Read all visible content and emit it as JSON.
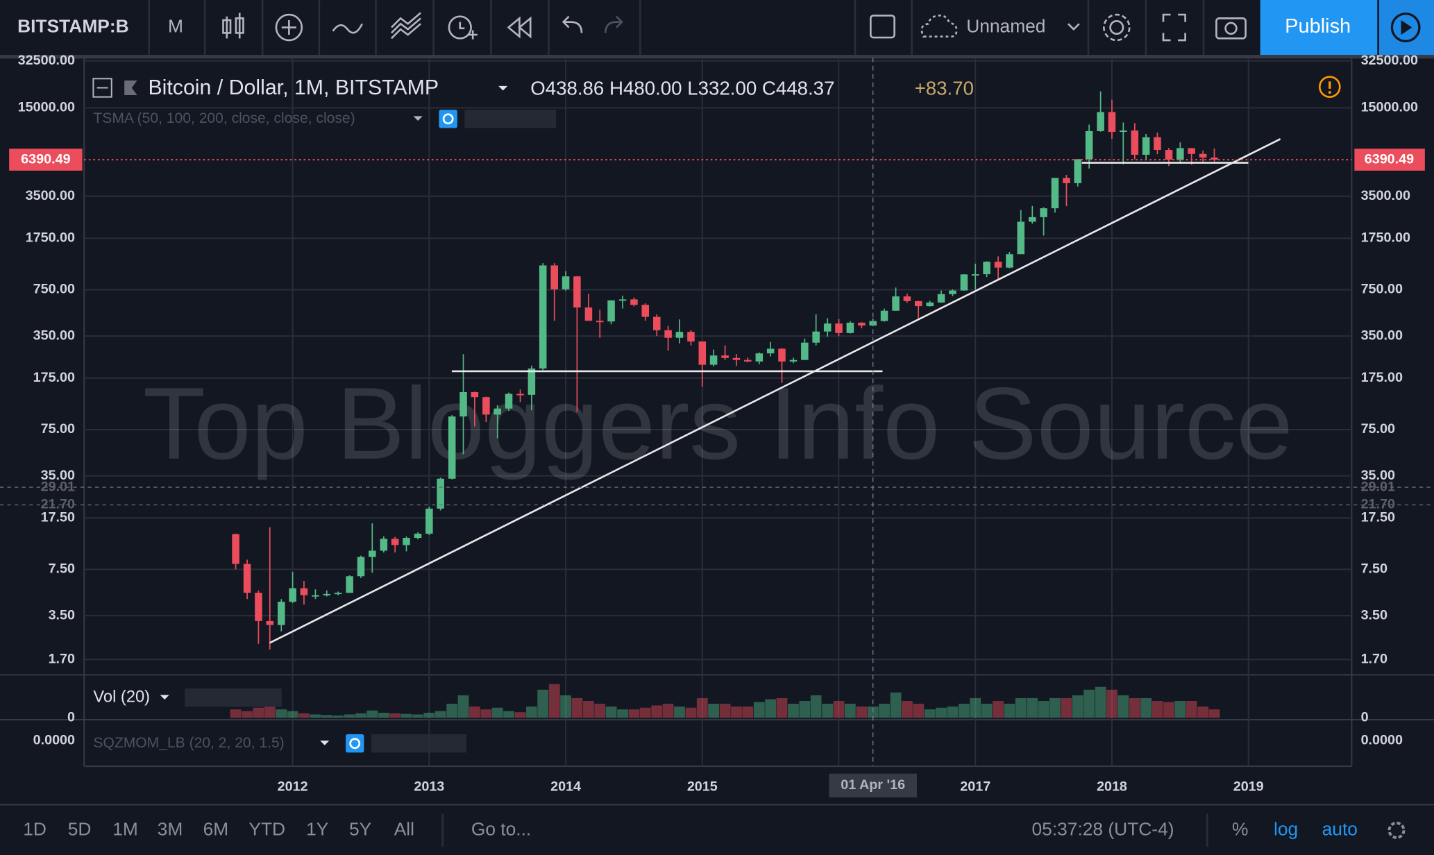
{
  "toolbar": {
    "symbol": "BITSTAMP:B",
    "interval": "M",
    "layout_name": "Unnamed",
    "publish": "Publish"
  },
  "legend": {
    "title": "Bitcoin / Dollar, 1M, BITSTAMP",
    "ohlc": "O438.86 H480.00 L332.00 C448.37",
    "change": "+83.70",
    "study": "TSMA (50, 100, 200, close, close, close)"
  },
  "watermark": "Top Bloggers Info Source",
  "chart_data": {
    "type": "candlestick",
    "x": [
      2011.583,
      2011.667,
      2011.75,
      2011.833,
      2011.917,
      2012,
      2012.083,
      2012.167,
      2012.25,
      2012.333,
      2012.417,
      2012.5,
      2012.583,
      2012.667,
      2012.75,
      2012.833,
      2012.917,
      2013,
      2013.083,
      2013.167,
      2013.25,
      2013.333,
      2013.417,
      2013.5,
      2013.583,
      2013.667,
      2013.75,
      2013.833,
      2013.917,
      2014,
      2014.083,
      2014.167,
      2014.25,
      2014.333,
      2014.417,
      2014.5,
      2014.583,
      2014.667,
      2014.75,
      2014.833,
      2014.917,
      2015,
      2015.083,
      2015.167,
      2015.25,
      2015.333,
      2015.417,
      2015.5,
      2015.583,
      2015.667,
      2015.75,
      2015.833,
      2015.917,
      2016,
      2016.083,
      2016.167,
      2016.25,
      2016.333,
      2016.417,
      2016.5,
      2016.583,
      2016.667,
      2016.75,
      2016.833,
      2016.917,
      2017,
      2017.083,
      2017.167,
      2017.25,
      2017.333,
      2017.417,
      2017.5,
      2017.583,
      2017.667,
      2017.75,
      2017.833,
      2017.917,
      2018,
      2018.083,
      2018.167,
      2018.25,
      2018.333,
      2018.417,
      2018.5,
      2018.583,
      2018.667,
      2018.75
    ],
    "open": [
      13.4,
      8.2,
      5.1,
      3.2,
      3.0,
      4.4,
      5.5,
      4.9,
      4.9,
      5.0,
      5.1,
      6.7,
      9.2,
      10.2,
      12.4,
      11.2,
      12.6,
      13.5,
      20.4,
      33.4,
      93,
      139,
      128,
      96,
      106,
      135,
      133,
      205,
      1120,
      755,
      935,
      560,
      450,
      445,
      630,
      640,
      585,
      480,
      385,
      340,
      375,
      320,
      218,
      254,
      244,
      236,
      230,
      263,
      284,
      230,
      236,
      314,
      377,
      430,
      368,
      436,
      416,
      448,
      531,
      672,
      622,
      573,
      608,
      698,
      741,
      966,
      969,
      1190,
      1080,
      1348,
      2300,
      2480,
      2870,
      4730,
      4340,
      6450,
      10230,
      14000,
      10100,
      10330,
      6930,
      9250,
      7500,
      6390,
      7730,
      7030,
      6620
    ],
    "high": [
      13.5,
      8.8,
      5.3,
      15.0,
      4.6,
      7.2,
      6.2,
      5.4,
      5.3,
      5.2,
      6.8,
      9.4,
      16,
      12.9,
      12.8,
      12.9,
      13.8,
      21.1,
      34,
      95,
      260,
      140,
      129,
      112,
      138,
      145,
      215,
      1163,
      1163,
      1020,
      940,
      700,
      540,
      630,
      680,
      660,
      600,
      500,
      415,
      460,
      385,
      320,
      280,
      300,
      260,
      246,
      267,
      317,
      286,
      245,
      336,
      500,
      470,
      463,
      447,
      440,
      468,
      550,
      778,
      705,
      625,
      625,
      740,
      755,
      970,
      1153,
      1200,
      1300,
      1400,
      2790,
      2980,
      2920,
      4740,
      4975,
      6470,
      11390,
      19666,
      17170,
      11790,
      11680,
      9770,
      9980,
      7770,
      8500,
      7750,
      7410,
      7680
    ],
    "low": [
      7.5,
      4.6,
      2.2,
      2.0,
      2.7,
      4.3,
      4.2,
      4.6,
      4.8,
      4.9,
      5.1,
      6.5,
      7.1,
      9.9,
      9.9,
      10.1,
      12.3,
      13.2,
      19.8,
      33,
      50,
      79,
      85,
      65,
      102,
      118,
      103,
      200,
      450,
      740,
      100,
      450,
      340,
      425,
      550,
      570,
      450,
      350,
      275,
      310,
      300,
      152,
      212,
      236,
      214,
      227,
      220,
      250,
      162,
      224,
      236,
      300,
      346,
      350,
      365,
      397,
      411,
      444,
      531,
      606,
      470,
      569,
      605,
      675,
      740,
      752,
      925,
      890,
      1070,
      1350,
      2230,
      1830,
      2670,
      2970,
      4110,
      5520,
      10130,
      9000,
      5920,
      6430,
      6430,
      7000,
      5750,
      6070,
      5880,
      6100,
      6200
    ],
    "close": [
      8.2,
      5.1,
      3.2,
      3.0,
      4.4,
      5.5,
      4.9,
      4.9,
      5.0,
      5.1,
      6.7,
      9.2,
      10.2,
      12.4,
      11.2,
      12.6,
      13.5,
      20.4,
      33.4,
      93,
      139,
      128,
      96,
      106,
      135,
      133,
      205,
      1120,
      755,
      935,
      560,
      450,
      445,
      630,
      640,
      585,
      480,
      385,
      340,
      375,
      320,
      218,
      254,
      244,
      236,
      230,
      263,
      284,
      230,
      236,
      314,
      377,
      430,
      368,
      436,
      416,
      448,
      531,
      672,
      622,
      573,
      608,
      698,
      741,
      966,
      969,
      1190,
      1080,
      1348,
      2300,
      2480,
      2870,
      4730,
      4340,
      6450,
      10230,
      14000,
      10100,
      10330,
      6930,
      9250,
      7500,
      6390,
      7730,
      7030,
      6620,
      6390.49
    ],
    "up_color": "#53b987",
    "down_color": "#eb4d5c",
    "xlim": [
      2010.473,
      2019.756
    ],
    "xticks": [
      2012,
      2013,
      2014,
      2015,
      2017,
      2018,
      2019
    ],
    "ylim": [
      1.34,
      33300
    ],
    "log_scale": true,
    "grid": true,
    "yticks": [
      {
        "value": 32500,
        "label": "32500.00"
      },
      {
        "value": 15000,
        "label": "15000.00"
      },
      {
        "value": 3500,
        "label": "3500.00"
      },
      {
        "value": 1750,
        "label": "1750.00"
      },
      {
        "value": 750,
        "label": "750.00"
      },
      {
        "value": 350,
        "label": "350.00"
      },
      {
        "value": 175,
        "label": "175.00"
      },
      {
        "value": 75,
        "label": "75.00"
      },
      {
        "value": 35,
        "label": "35.00"
      },
      {
        "value": 17.5,
        "label": "17.50"
      },
      {
        "value": 7.5,
        "label": "7.50"
      },
      {
        "value": 3.5,
        "label": "3.50"
      },
      {
        "value": 1.7,
        "label": "1.70"
      }
    ],
    "last_price": 6390.49,
    "hlines": [
      29.01,
      {
        "value": 21.7,
        "label": "21.70"
      }
    ],
    "crosshair": {
      "x": 2016.25,
      "label": "01 Apr '16"
    },
    "volume": {
      "title": "Vol (20)",
      "ylim": [
        0,
        650
      ],
      "yticks": [
        0
      ],
      "values": [
        150,
        120,
        180,
        200,
        150,
        120,
        80,
        60,
        50,
        40,
        60,
        80,
        130,
        90,
        80,
        70,
        60,
        90,
        120,
        250,
        400,
        200,
        150,
        180,
        120,
        100,
        200,
        500,
        600,
        400,
        350,
        300,
        250,
        200,
        150,
        150,
        180,
        220,
        250,
        200,
        180,
        350,
        250,
        250,
        200,
        200,
        280,
        330,
        350,
        250,
        300,
        400,
        250,
        300,
        250,
        200,
        200,
        250,
        450,
        300,
        250,
        150,
        180,
        200,
        250,
        350,
        250,
        300,
        250,
        350,
        350,
        300,
        350,
        350,
        400,
        500,
        550,
        500,
        400,
        350,
        350,
        300,
        280,
        300,
        300,
        200,
        150
      ]
    },
    "oscillator": {
      "title": "SQZMOM_LB (20, 2, 20, 1.5)",
      "yticks": [
        {
          "value": 0,
          "label": "0.0000"
        }
      ]
    }
  },
  "bottom_bar": {
    "ranges": [
      "1D",
      "5D",
      "1M",
      "3M",
      "6M",
      "YTD",
      "1Y",
      "5Y",
      "All"
    ],
    "goto": "Go to...",
    "time": "05:37:28 (UTC-4)",
    "percent": "%",
    "log": "log",
    "auto": "auto"
  }
}
